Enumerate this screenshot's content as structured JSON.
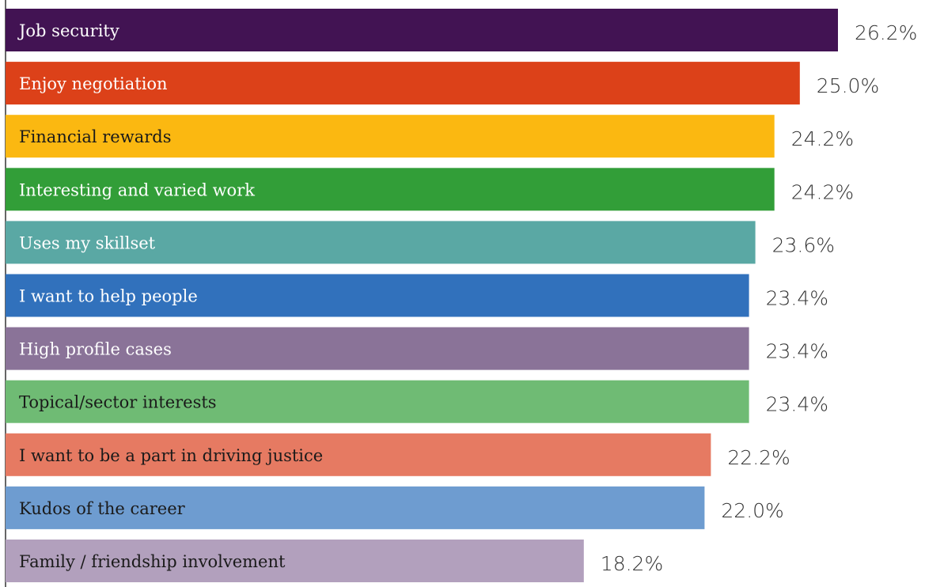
{
  "chart_data": {
    "type": "bar",
    "orientation": "horizontal",
    "categories": [
      "Job security",
      "Enjoy negotiation",
      "Financial rewards",
      "Interesting and varied work",
      "Uses my skillset",
      "I want to help people",
      "High profile cases",
      "Topical/sector interests",
      "I want to be a part in driving justice",
      "Kudos of the career",
      "Family / friendship involvement"
    ],
    "values": [
      26.2,
      25.0,
      24.2,
      24.2,
      23.6,
      23.4,
      23.4,
      23.4,
      22.2,
      22.0,
      18.2
    ],
    "value_labels": [
      "26.2%",
      "25.0%",
      "24.2%",
      "24.2%",
      "23.6%",
      "23.4%",
      "23.4%",
      "23.4%",
      "22.2%",
      "22.0%",
      "18.2%"
    ],
    "colors": [
      "#421353",
      "#dc4119",
      "#fbb811",
      "#329e38",
      "#5aa8a4",
      "#3171bc",
      "#8a7398",
      "#6fbb74",
      "#e67a62",
      "#6e9cd0",
      "#b2a0bd"
    ],
    "label_colors": [
      "#ffffff",
      "#ffffff",
      "#1a1a1a",
      "#ffffff",
      "#ffffff",
      "#ffffff",
      "#ffffff",
      "#1a1a1a",
      "#1a1a1a",
      "#1a1a1a",
      "#1a1a1a"
    ],
    "xlim": [
      0,
      26.2
    ],
    "title": "",
    "xlabel": "",
    "ylabel": "",
    "grid": false,
    "legend": "none"
  }
}
